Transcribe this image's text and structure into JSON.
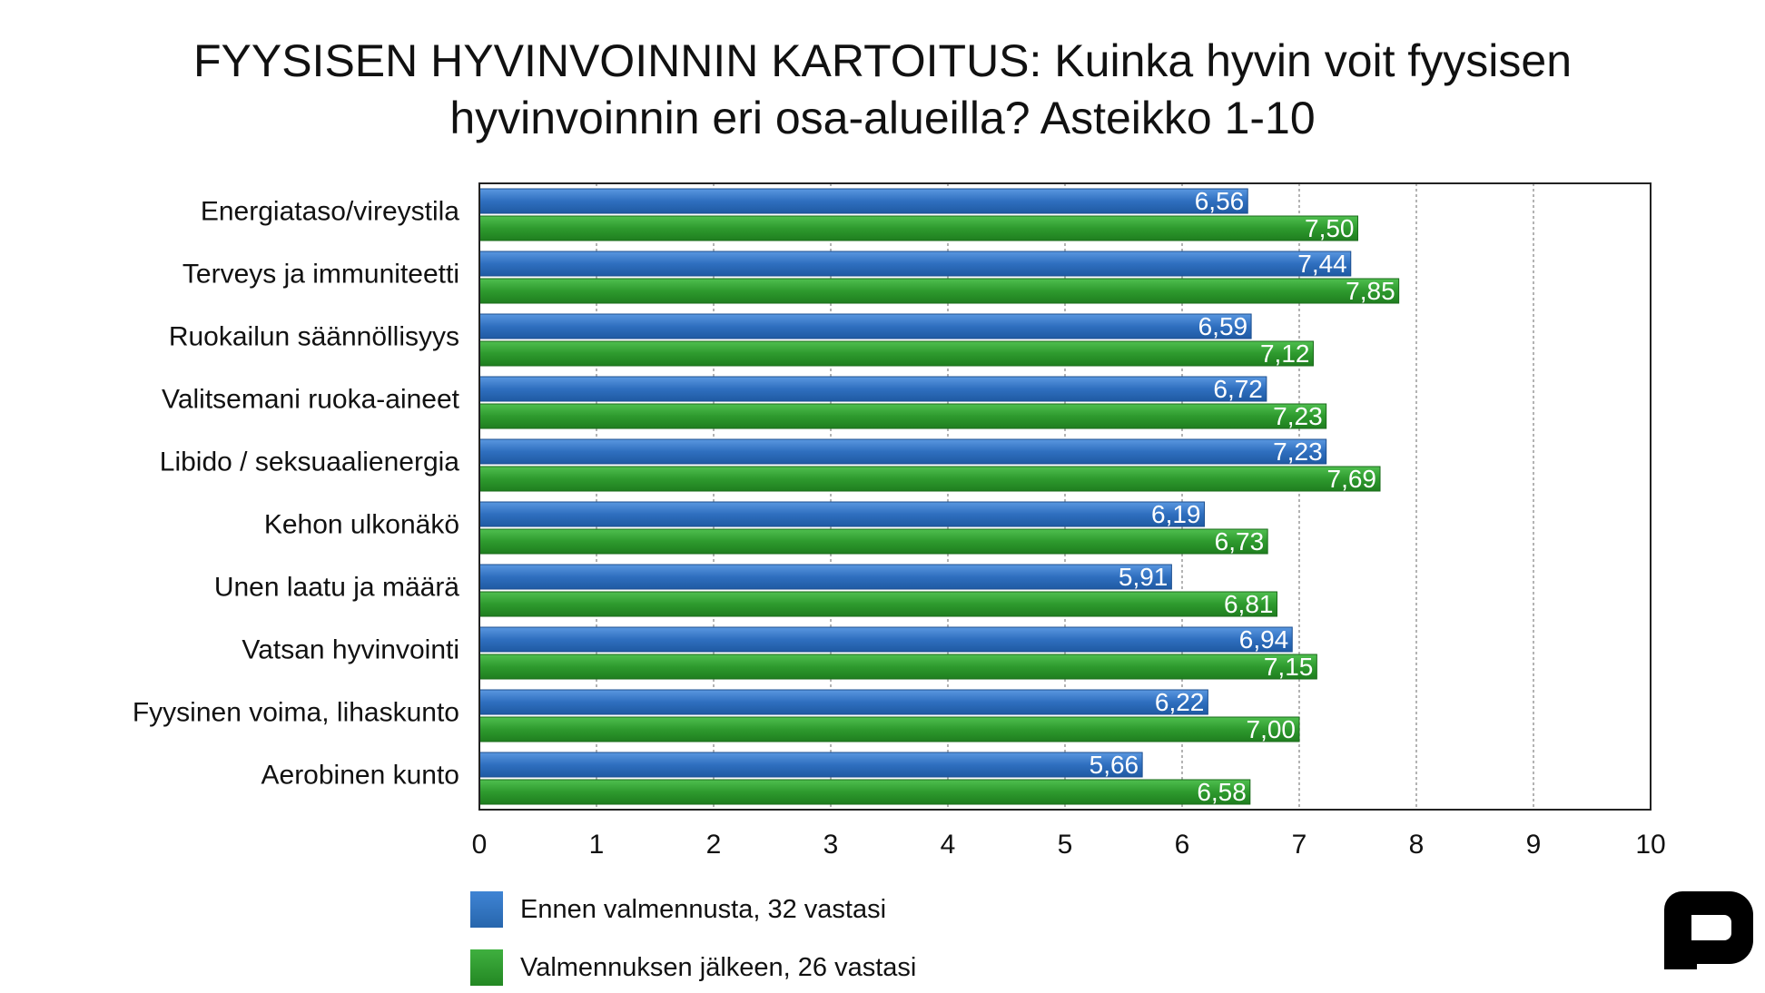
{
  "title_lines": [
    "FYYSISEN HYVINVOINNIN KARTOITUS: Kuinka hyvin voit fyysisen",
    "hyvinvoinnin eri osa-alueilla? Asteikko 1-10"
  ],
  "colors": {
    "series_before": "#2f6fbf",
    "series_after": "#2e9a2e",
    "gridline": "#9a9a9a",
    "frame": "#222222"
  },
  "logo_icon": "p-logo-icon",
  "chart_data": {
    "type": "bar",
    "orientation": "horizontal",
    "title": "FYYSISEN HYVINVOINNIN KARTOITUS: Kuinka hyvin voit fyysisen hyvinvoinnin eri osa-alueilla? Asteikko 1-10",
    "categories": [
      "Energiataso/vireystila",
      "Terveys ja immuniteetti",
      "Ruokailun säännöllisyys",
      "Valitsemani ruoka-aineet",
      "Libido / seksuaalienergia",
      "Kehon ulkonäkö",
      "Unen laatu ja määrä",
      "Vatsan hyvinvointi",
      "Fyysinen voima, lihaskunto",
      "Aerobinen kunto"
    ],
    "series": [
      {
        "name": "Ennen valmennusta, 32 vastasi",
        "values": [
          6.56,
          7.44,
          6.59,
          6.72,
          7.23,
          6.19,
          5.91,
          6.94,
          6.22,
          5.66
        ],
        "labels": [
          "6,56",
          "7,44",
          "6,59",
          "6,72",
          "7,23",
          "6,19",
          "5,91",
          "6,94",
          "6,22",
          "5,66"
        ]
      },
      {
        "name": "Valmennuksen jälkeen, 26 vastasi",
        "values": [
          7.5,
          7.85,
          7.12,
          7.23,
          7.69,
          6.73,
          6.81,
          7.15,
          7.0,
          6.58
        ],
        "labels": [
          "7,50",
          "7,85",
          "7,12",
          "7,23",
          "7,69",
          "6,73",
          "6,81",
          "7,15",
          "7,00",
          "6,58"
        ]
      }
    ],
    "xlim": [
      0,
      10
    ],
    "xticks": [
      "0",
      "1",
      "2",
      "3",
      "4",
      "5",
      "6",
      "7",
      "8",
      "9",
      "10"
    ],
    "grid": "vertical dashed",
    "legend_position": "bottom-left"
  }
}
